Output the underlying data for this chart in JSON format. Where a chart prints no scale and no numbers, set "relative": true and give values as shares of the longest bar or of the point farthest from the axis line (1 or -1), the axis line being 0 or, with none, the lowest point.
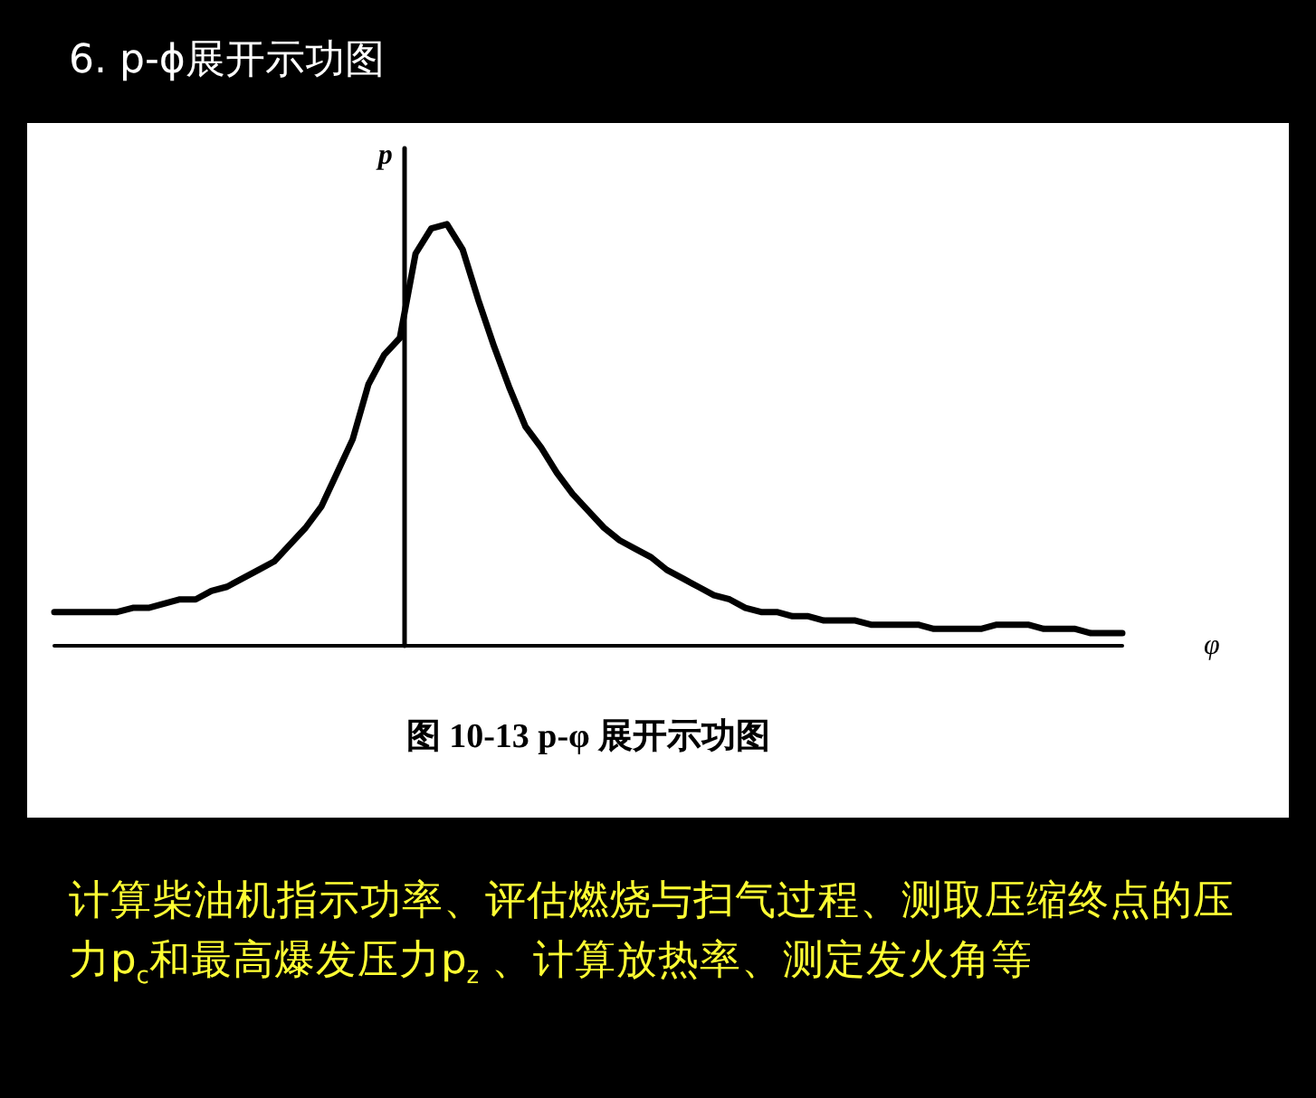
{
  "chart_data": {
    "type": "line",
    "title": "6. p-ϕ展开示功图",
    "xlabel": "φ",
    "ylabel": "p",
    "relative": true,
    "grid": false,
    "marker": "none",
    "line_style": "solid",
    "annotations": [
      "图 10-13   p-φ 展开示功图",
      "计算柴油机指示功率、评估燃烧与扫气过程、测取压缩终点的压力p$_{c}$和最高爆发压力p$_{z}$ 、计算放热率、测定发火角等"
    ],
    "categories": [
      null,
      null,
      null,
      null,
      null,
      null,
      null,
      null,
      null,
      null,
      null,
      null,
      null,
      null,
      null,
      null,
      null,
      null,
      null,
      null,
      null,
      null,
      null,
      null,
      null,
      null,
      null,
      null,
      null,
      null,
      null,
      null,
      null,
      null,
      null,
      null,
      null,
      null,
      null,
      null,
      null,
      null,
      null,
      null,
      null,
      null,
      null,
      null,
      null,
      null,
      null,
      null,
      null,
      null,
      null,
      null,
      null,
      null,
      null,
      null,
      null,
      null,
      null,
      null,
      null,
      null,
      null,
      null,
      null
    ],
    "series": [
      {
        "color": "#000000",
        "values": [
          0.08,
          0.08,
          0.08,
          0.08,
          0.08,
          0.09,
          0.09,
          0.1,
          0.11,
          0.11,
          0.13,
          0.14,
          0.16,
          0.18,
          0.2,
          0.24,
          0.28,
          0.33,
          0.41,
          0.49,
          0.62,
          0.69,
          0.73,
          0.93,
          0.99,
          1.0,
          0.94,
          0.82,
          0.71,
          0.61,
          0.52,
          0.47,
          0.41,
          0.36,
          0.32,
          0.28,
          0.25,
          0.23,
          0.21,
          0.18,
          0.16,
          0.14,
          0.12,
          0.11,
          0.09,
          0.08,
          0.08,
          0.07,
          0.07,
          0.06,
          0.06,
          0.06,
          0.05,
          0.05,
          0.05,
          0.05,
          0.04,
          0.04,
          0.04,
          0.04,
          0.05,
          0.05,
          0.05,
          0.04,
          0.04,
          0.04,
          0.03,
          0.03,
          0.03
        ]
      }
    ]
  }
}
